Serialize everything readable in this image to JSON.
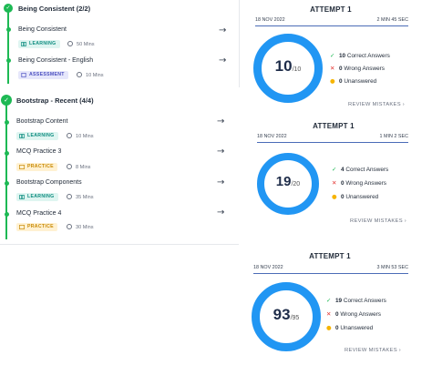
{
  "colors": {
    "accent": "#2196f3",
    "success": "#1db954",
    "error": "#e53935",
    "warning": "#f6b400"
  },
  "section1": {
    "title": "Being Consistent (2/2)",
    "items": [
      {
        "title": "Being Consistent",
        "badge": "LEARNING",
        "duration": "50 Mins",
        "arrow": "→"
      },
      {
        "title": "Being Consistent - English",
        "badge": "ASSESSMENT",
        "duration": "10 Mins",
        "arrow": "→"
      }
    ]
  },
  "section2": {
    "title": "Bootstrap - Recent (4/4)",
    "items": [
      {
        "title": "Bootstrap Content",
        "badge": "LEARNING",
        "duration": "10 Mins",
        "arrow": "→"
      },
      {
        "title": "MCQ Practice 3",
        "badge": "PRACTICE",
        "duration": "8 Mins",
        "arrow": "→"
      },
      {
        "title": "Bootstrap Components",
        "badge": "LEARNING",
        "duration": "35 Mins",
        "arrow": "→"
      },
      {
        "title": "MCQ Practice 4",
        "badge": "PRACTICE",
        "duration": "30 Mins",
        "arrow": "→"
      }
    ]
  },
  "attempts": [
    {
      "title": "ATTEMPT 1",
      "date": "18 NOV 2022",
      "time": "2 MIN 45 SEC",
      "score": "10",
      "total": "/10",
      "correct": "10",
      "correct_label": "Correct Answers",
      "wrong": "0",
      "wrong_label": "Wrong Answers",
      "unanswered": "0",
      "unanswered_label": "Unanswered",
      "review": "REVIEW MISTAKES",
      "review_icon": "chevron-right"
    },
    {
      "title": "ATTEMPT 1",
      "date": "18 NOV 2022",
      "time": "1 MIN 2 SEC",
      "score": "19",
      "total": "/20",
      "correct": "4",
      "correct_label": "Correct Answers",
      "wrong": "0",
      "wrong_label": "Wrong Answers",
      "unanswered": "0",
      "unanswered_label": "Unanswered",
      "review": "REVIEW MISTAKES",
      "review_icon": "chevron-right"
    },
    {
      "title": "ATTEMPT 1",
      "date": "18 NOV 2022",
      "time": "3 MIN 53 SEC",
      "score": "93",
      "total": "/95",
      "correct": "19",
      "correct_label": "Correct Answers",
      "wrong": "0",
      "wrong_label": "Wrong Answers",
      "unanswered": "0",
      "unanswered_label": "Unanswered",
      "review": "REVIEW MISTAKES",
      "review_icon": "chevron-right"
    }
  ]
}
